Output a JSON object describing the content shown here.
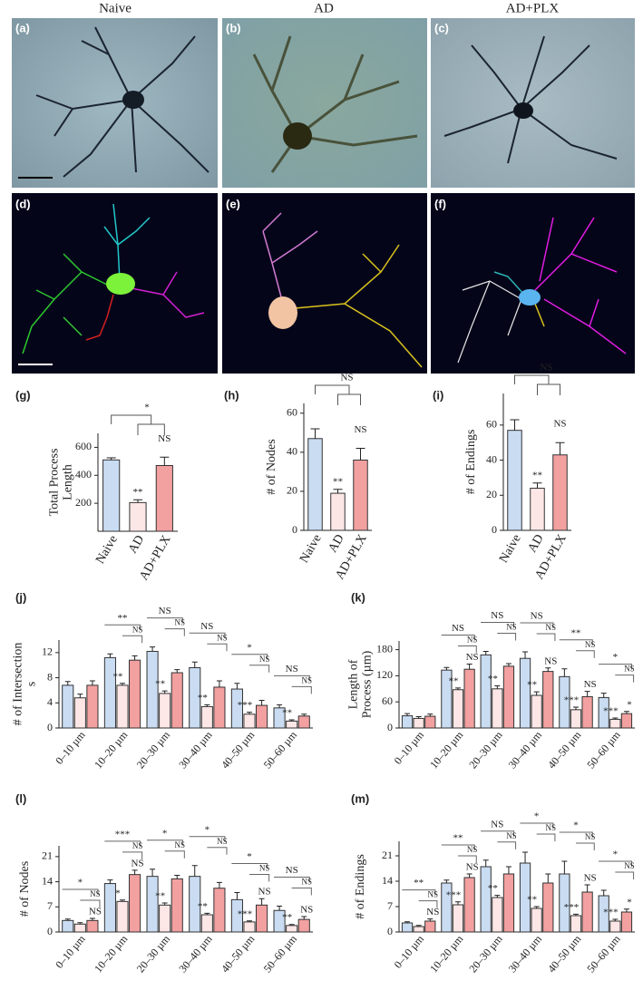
{
  "columns": [
    "Naive",
    "AD",
    "AD+PLX"
  ],
  "panels": [
    "(a)",
    "(b)",
    "(c)",
    "(d)",
    "(e)",
    "(f)"
  ],
  "chart_data": [
    {
      "type": "bar",
      "panel": "(g)",
      "ylabel": [
        "Total Process",
        "Length"
      ],
      "categories": [
        "Naive",
        "AD",
        "AD+PLX"
      ],
      "values": [
        510,
        205,
        470
      ],
      "errors": [
        15,
        20,
        60
      ],
      "colors": [
        "#c9dcf2",
        "#fde6e6",
        "#f2a0a0"
      ],
      "sig_labels": [
        null,
        "**",
        "NS"
      ],
      "bracket_label": "*",
      "ylim": [
        0,
        700
      ],
      "yticks": [
        200,
        400,
        600
      ]
    },
    {
      "type": "bar",
      "panel": "(h)",
      "ylabel": [
        "# of Nodes"
      ],
      "categories": [
        "Naive",
        "AD",
        "AD+PLX"
      ],
      "values": [
        47,
        19,
        36
      ],
      "errors": [
        5,
        2,
        6
      ],
      "colors": [
        "#c9dcf2",
        "#fde6e6",
        "#f2a0a0"
      ],
      "sig_labels": [
        null,
        "**",
        "NS"
      ],
      "bracket_label": "NS",
      "ylim": [
        0,
        65
      ],
      "yticks": [
        0,
        20,
        40,
        60
      ]
    },
    {
      "type": "bar",
      "panel": "(i)",
      "ylabel": [
        "# of Endings"
      ],
      "categories": [
        "Naive",
        "AD",
        "AD+PLX"
      ],
      "values": [
        57,
        24,
        43
      ],
      "errors": [
        6,
        3,
        7
      ],
      "colors": [
        "#c9dcf2",
        "#fde6e6",
        "#f2a0a0"
      ],
      "sig_labels": [
        null,
        "**",
        "NS"
      ],
      "bracket_label": "NS",
      "ylim": [
        0,
        78
      ],
      "yticks": [
        0,
        20,
        40,
        60
      ]
    },
    {
      "type": "grouped_bar",
      "panel": "(j)",
      "ylabel": [
        "# of Intersection",
        "s"
      ],
      "categories": [
        "0–10 µm",
        "10–20 µm",
        "20–30 µm",
        "30–40 µm",
        "40–50 µm",
        "50–60 µm"
      ],
      "series": [
        {
          "color": "#c9dcf2",
          "values": [
            6.8,
            11.2,
            12.2,
            9.6,
            6.2,
            3.2
          ],
          "errors": [
            0.6,
            0.6,
            0.7,
            0.9,
            0.9,
            0.5
          ],
          "sig_labels": [
            null,
            null,
            null,
            null,
            null,
            null
          ]
        },
        {
          "color": "#fde6e6",
          "values": [
            4.8,
            6.8,
            5.5,
            3.4,
            2.2,
            1.1
          ],
          "errors": [
            0.6,
            0.3,
            0.4,
            0.3,
            0.3,
            0.2
          ],
          "sig_labels": [
            null,
            "**",
            "**",
            "**",
            "***",
            "**"
          ]
        },
        {
          "color": "#f2a0a0",
          "values": [
            6.8,
            10.8,
            8.8,
            6.5,
            3.6,
            1.9
          ],
          "errors": [
            0.7,
            0.7,
            0.5,
            1.0,
            0.8,
            0.3
          ],
          "sig_labels": [
            null,
            null,
            null,
            null,
            null,
            null
          ]
        }
      ],
      "bracket_labels": [
        null,
        [
          "**",
          "NS"
        ],
        [
          "NS",
          "NS"
        ],
        [
          "NS",
          "NS"
        ],
        [
          "*",
          "NS"
        ],
        [
          "NS",
          "NS"
        ]
      ],
      "ylim": [
        0,
        14
      ],
      "yticks": [
        0,
        4,
        8,
        12
      ]
    },
    {
      "type": "grouped_bar",
      "panel": "(k)",
      "ylabel": [
        "Length of",
        "Process (µm)"
      ],
      "categories": [
        "0–10 µm",
        "10–20 µm",
        "20–30 µm",
        "30–40 µm",
        "40–50 µm",
        "50–60 µm"
      ],
      "series": [
        {
          "color": "#c9dcf2",
          "values": [
            28,
            133,
            168,
            160,
            118,
            70
          ],
          "errors": [
            5,
            6,
            8,
            15,
            18,
            10
          ],
          "sig_labels": [
            null,
            null,
            null,
            null,
            null,
            null
          ]
        },
        {
          "color": "#fde6e6",
          "values": [
            22,
            88,
            90,
            75,
            42,
            20
          ],
          "errors": [
            4,
            4,
            7,
            8,
            6,
            3
          ],
          "sig_labels": [
            null,
            "**",
            "**",
            "**",
            "***",
            "***"
          ]
        },
        {
          "color": "#f2a0a0",
          "values": [
            27,
            135,
            142,
            130,
            72,
            33
          ],
          "errors": [
            5,
            12,
            6,
            8,
            12,
            5
          ],
          "sig_labels": [
            null,
            "NS",
            null,
            "NS",
            "NS",
            "*"
          ]
        }
      ],
      "bracket_labels": [
        null,
        [
          "NS",
          "NS"
        ],
        [
          "NS",
          "NS"
        ],
        [
          "NS",
          "NS"
        ],
        [
          "**",
          "NS"
        ],
        [
          "*",
          "NS"
        ]
      ],
      "ylim": [
        0,
        200
      ],
      "yticks": [
        0,
        60,
        120,
        180
      ]
    },
    {
      "type": "grouped_bar",
      "panel": "(l)",
      "ylabel": [
        "# of Nodes"
      ],
      "categories": [
        "0–10 µm",
        "10–20 µm",
        "20–30 µm",
        "30–40 µm",
        "40–50 µm",
        "50–60 µm"
      ],
      "series": [
        {
          "color": "#c9dcf2",
          "values": [
            3.2,
            13.5,
            15.5,
            15.5,
            9,
            6
          ],
          "errors": [
            0.4,
            1.0,
            2.0,
            3.0,
            2.0,
            1.2
          ],
          "sig_labels": [
            null,
            null,
            null,
            null,
            null,
            null
          ]
        },
        {
          "color": "#fde6e6",
          "values": [
            2.2,
            8.5,
            7.5,
            4.8,
            2.8,
            1.8
          ],
          "errors": [
            0.4,
            0.4,
            0.6,
            0.4,
            0.3,
            0.3
          ],
          "sig_labels": [
            null,
            "*",
            "**",
            "**",
            "***",
            "**"
          ]
        },
        {
          "color": "#f2a0a0",
          "values": [
            3.2,
            16,
            14.8,
            12.2,
            7.5,
            3.5
          ],
          "errors": [
            0.6,
            1.2,
            1.0,
            1.6,
            1.8,
            0.8
          ],
          "sig_labels": [
            "NS",
            "NS",
            null,
            null,
            "NS",
            "NS"
          ]
        }
      ],
      "bracket_labels": [
        [
          "*",
          "NS"
        ],
        [
          "***",
          "NS"
        ],
        [
          "*",
          "NS"
        ],
        [
          "*",
          "NS"
        ],
        [
          "*",
          "NS"
        ],
        [
          "NS",
          "NS"
        ]
      ],
      "ylim": [
        0,
        24
      ],
      "yticks": [
        0,
        7,
        14,
        21
      ]
    },
    {
      "type": "grouped_bar",
      "panel": "(m)",
      "ylabel": [
        "# of Endings"
      ],
      "categories": [
        "0–10 µm",
        "10–20 µm",
        "20–30 µm",
        "30–40 µm",
        "40–50 µm",
        "50–60 µm"
      ],
      "series": [
        {
          "color": "#c9dcf2",
          "values": [
            2.5,
            13.5,
            18,
            19,
            16,
            10
          ],
          "errors": [
            0.3,
            0.8,
            1.8,
            3.0,
            3.5,
            1.5
          ],
          "sig_labels": [
            null,
            null,
            null,
            null,
            null,
            null
          ]
        },
        {
          "color": "#fde6e6",
          "values": [
            1.5,
            7.5,
            9.5,
            6.5,
            4.5,
            3
          ],
          "errors": [
            0.3,
            0.8,
            0.6,
            0.5,
            0.4,
            0.5
          ],
          "sig_labels": [
            null,
            "***",
            "**",
            "**",
            "***",
            "***"
          ]
        },
        {
          "color": "#f2a0a0",
          "values": [
            3,
            15,
            16,
            13.5,
            11,
            5.5
          ],
          "errors": [
            0.6,
            1.0,
            2.0,
            2.5,
            2.0,
            0.8
          ],
          "sig_labels": [
            "NS",
            "NS",
            null,
            null,
            "NS",
            "*"
          ]
        }
      ],
      "bracket_labels": [
        [
          "**",
          "NS"
        ],
        [
          "**",
          "NS"
        ],
        [
          "NS",
          "NS"
        ],
        [
          "*",
          "NS"
        ],
        [
          "*",
          "NS"
        ],
        [
          "*",
          "NS"
        ]
      ],
      "ylim": [
        0,
        25
      ],
      "yticks": [
        0,
        7,
        14,
        21
      ]
    }
  ]
}
